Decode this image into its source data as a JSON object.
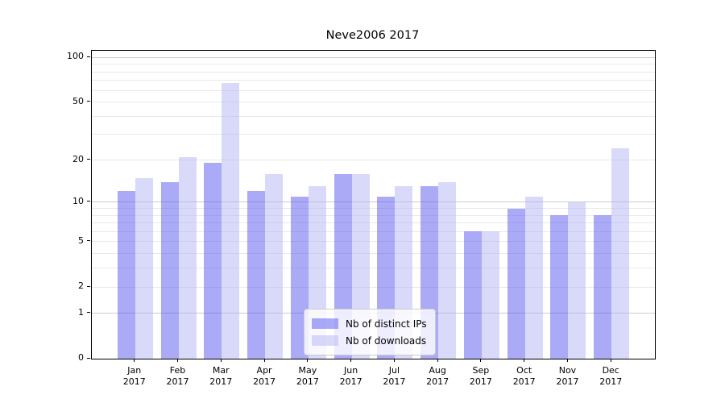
{
  "title": "Neve2006 2017",
  "chart_data": {
    "type": "bar",
    "title": "Neve2006 2017",
    "categories": [
      "Jan 2017",
      "Feb 2017",
      "Mar 2017",
      "Apr 2017",
      "May 2017",
      "Jun 2017",
      "Jul 2017",
      "Aug 2017",
      "Sep 2017",
      "Oct 2017",
      "Nov 2017",
      "Dec 2017"
    ],
    "x_tick_line1": [
      "Jan",
      "Feb",
      "Mar",
      "Apr",
      "May",
      "Jun",
      "Jul",
      "Aug",
      "Sep",
      "Oct",
      "Nov",
      "Dec"
    ],
    "x_tick_line2": [
      "2017",
      "2017",
      "2017",
      "2017",
      "2017",
      "2017",
      "2017",
      "2017",
      "2017",
      "2017",
      "2017",
      "2017"
    ],
    "series": [
      {
        "name": "Nb of distinct IPs",
        "color": "rgba(85,85,239,0.5)",
        "color_hex": "#aaaaf7",
        "values": [
          12,
          14,
          19,
          12,
          11,
          16,
          11,
          13,
          6,
          9,
          8,
          8
        ]
      },
      {
        "name": "Nb of downloads",
        "color": "rgba(180,180,245,0.5)",
        "color_hex": "#dadaf9",
        "values": [
          15,
          21,
          67,
          16,
          13,
          16,
          13,
          14,
          6,
          11,
          10,
          24
        ]
      }
    ],
    "xlabel": "",
    "ylabel": "",
    "yscale": "log1p",
    "ylim": [
      0,
      111
    ],
    "y_ticks": [
      100,
      50,
      20,
      10,
      5,
      2,
      1,
      0
    ],
    "grid_major": [
      1,
      10,
      100
    ],
    "grid_minor": [
      2,
      3,
      4,
      5,
      6,
      7,
      8,
      9,
      20,
      30,
      40,
      50,
      60,
      70,
      80,
      90
    ],
    "grid": "on",
    "legend_position": "lower center"
  }
}
